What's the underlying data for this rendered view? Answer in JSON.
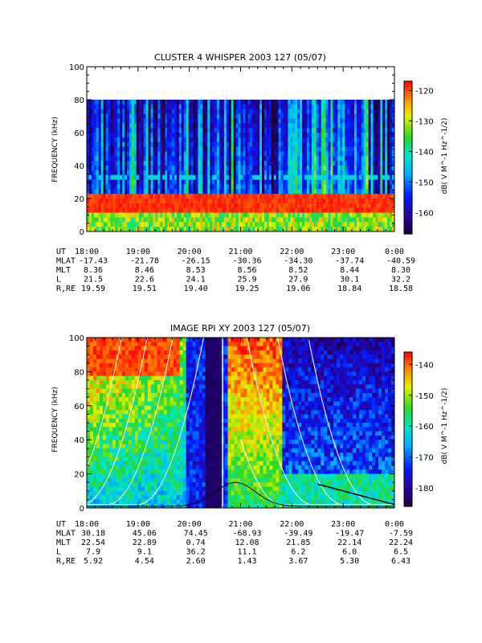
{
  "chart_data": [
    {
      "type": "heatmap",
      "title": "CLUSTER 4 WHISPER 2003 127 (05/07)",
      "ylabel": "FREQUENCY (kHz)",
      "ylim": [
        0,
        100
      ],
      "y_ticks": [
        "0",
        "20",
        "40",
        "60",
        "80",
        "100"
      ],
      "x_ticks": [
        "18:00",
        "19:00",
        "20:00",
        "21:00",
        "22:00",
        "23:00",
        "0:00"
      ],
      "colorbar": {
        "ticks": [
          "-120",
          "-130",
          "-140",
          "-150",
          "-160"
        ],
        "range": [
          -167,
          -117
        ],
        "label": "dB( V M^-1 Hz^-1/2)"
      },
      "data_top_khz": 80,
      "ephemeris": [
        {
          "label": "UT",
          "values": [
            "18:00",
            "19:00",
            "20:00",
            "21:00",
            "22:00",
            "23:00",
            "0:00"
          ]
        },
        {
          "label": "MLAT",
          "values": [
            "-17.43",
            "-21.78",
            "-26.15",
            "-30.36",
            "-34.30",
            "-37.74",
            "-40.59"
          ]
        },
        {
          "label": "MLT",
          "values": [
            "8.36",
            "8.46",
            "8.53",
            "8.56",
            "8.52",
            "8.44",
            "8.30"
          ]
        },
        {
          "label": "L",
          "values": [
            "21.5",
            "22.6",
            "24.1",
            "25.9",
            "27.9",
            "30.1",
            "32.2"
          ]
        },
        {
          "label": "R,RE",
          "values": [
            "19.59",
            "19.51",
            "19.40",
            "19.25",
            "19.06",
            "18.84",
            "18.58"
          ]
        }
      ]
    },
    {
      "type": "heatmap",
      "title": "IMAGE RPI XY 2003 127 (05/07)",
      "ylabel": "FREQUENCY (kHz)",
      "ylim": [
        0,
        100
      ],
      "y_ticks": [
        "0",
        "20",
        "40",
        "60",
        "80",
        "100"
      ],
      "x_ticks": [
        "18:00",
        "19:00",
        "20:00",
        "21:00",
        "22:00",
        "23:00",
        "0:00"
      ],
      "colorbar": {
        "ticks": [
          "-140",
          "-150",
          "-160",
          "-170",
          "-180"
        ],
        "range": [
          -186,
          -136
        ],
        "label": "dB( V M^-1 Hz^-1/2)"
      },
      "ephemeris": [
        {
          "label": "UT",
          "values": [
            "18:00",
            "19:00",
            "20:00",
            "21:00",
            "22:00",
            "23:00",
            "0:00"
          ]
        },
        {
          "label": "MLAT",
          "values": [
            "30.18",
            "45.06",
            "74.45",
            "-68.93",
            "-39.49",
            "-19.47",
            "-7.59"
          ]
        },
        {
          "label": "MLT",
          "values": [
            "22.54",
            "22.89",
            "0.74",
            "12.08",
            "21.85",
            "22.14",
            "22.24"
          ]
        },
        {
          "label": "L",
          "values": [
            "7.9",
            "9.1",
            "36.2",
            "11.1",
            "6.2",
            "6.0",
            "6.5"
          ]
        },
        {
          "label": "R,RE",
          "values": [
            "5.92",
            "4.54",
            "2.60",
            "1.43",
            "3.67",
            "5.30",
            "6.43"
          ]
        }
      ]
    }
  ]
}
